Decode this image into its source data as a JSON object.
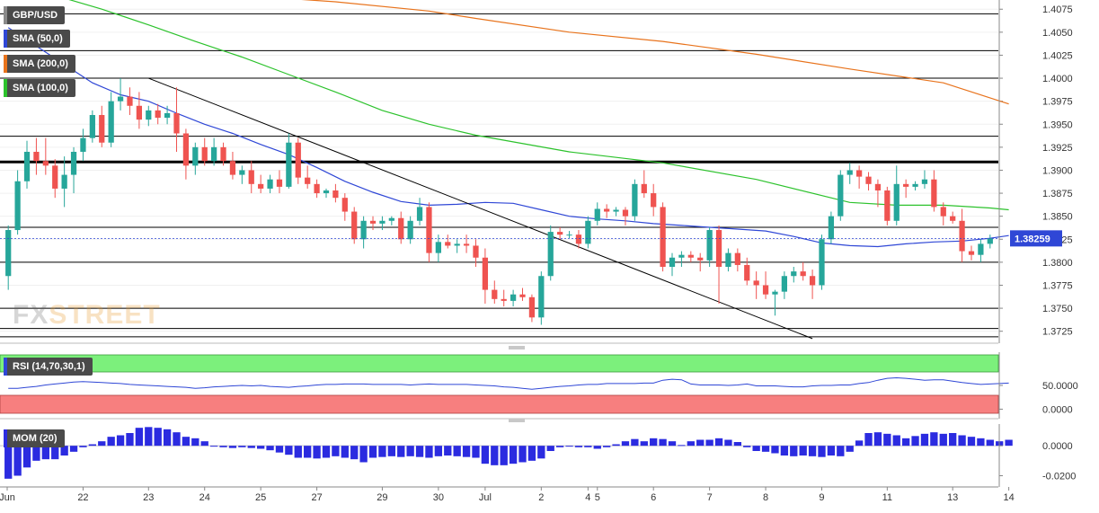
{
  "chart_data": [
    {
      "type": "candlestick",
      "symbol": "GBP/USD",
      "last_price": "1.38259",
      "ylim": [
        1.3712,
        1.4085
      ],
      "y_ticks": [
        "1.4075",
        "1.4050",
        "1.4025",
        "1.4000",
        "1.3975",
        "1.3950",
        "1.3925",
        "1.3900",
        "1.3875",
        "1.3850",
        "1.3825",
        "1.3800",
        "1.3775",
        "1.3750",
        "1.3725"
      ],
      "x_labels": [
        "Jun",
        "22",
        "23",
        "24",
        "25",
        "27",
        "29",
        "30",
        "Jul",
        "2",
        "4",
        "5",
        "6",
        "7",
        "8",
        "9",
        "11",
        "13",
        "14"
      ],
      "horizontal_levels": [
        1.407,
        1.403,
        1.4,
        1.3937,
        1.3909,
        1.3838,
        1.38,
        1.375,
        1.3728,
        1.3719
      ],
      "emphasized_level": 1.3909,
      "candles": [
        [
          1.3785,
          1.384,
          1.377,
          1.3835
        ],
        [
          1.3835,
          1.39,
          1.383,
          1.3888
        ],
        [
          1.3888,
          1.3932,
          1.388,
          1.392
        ],
        [
          1.392,
          1.3935,
          1.3895,
          1.391
        ],
        [
          1.391,
          1.3935,
          1.3895,
          1.3905
        ],
        [
          1.3905,
          1.3912,
          1.387,
          1.388
        ],
        [
          1.388,
          1.3915,
          1.386,
          1.3895
        ],
        [
          1.3895,
          1.3925,
          1.3875,
          1.392
        ],
        [
          1.392,
          1.3945,
          1.391,
          1.3935
        ],
        [
          1.3935,
          1.3965,
          1.393,
          1.396
        ],
        [
          1.396,
          1.397,
          1.3925,
          1.393
        ],
        [
          1.393,
          1.3985,
          1.3925,
          1.3975
        ],
        [
          1.3975,
          1.4,
          1.3965,
          1.398
        ],
        [
          1.398,
          1.399,
          1.396,
          1.397
        ],
        [
          1.397,
          1.3985,
          1.3945,
          1.3955
        ],
        [
          1.3955,
          1.397,
          1.3948,
          1.3965
        ],
        [
          1.3965,
          1.3972,
          1.395,
          1.3957
        ],
        [
          1.3957,
          1.397,
          1.395,
          1.3962
        ],
        [
          1.3962,
          1.399,
          1.392,
          1.394
        ],
        [
          1.394,
          1.3945,
          1.389,
          1.3905
        ],
        [
          1.3905,
          1.393,
          1.3895,
          1.3925
        ],
        [
          1.3925,
          1.3935,
          1.3905,
          1.391
        ],
        [
          1.391,
          1.3935,
          1.3905,
          1.3925
        ],
        [
          1.3925,
          1.393,
          1.3905,
          1.391
        ],
        [
          1.391,
          1.392,
          1.389,
          1.3895
        ],
        [
          1.3895,
          1.3905,
          1.3885,
          1.39
        ],
        [
          1.39,
          1.391,
          1.3875,
          1.3885
        ],
        [
          1.3885,
          1.3895,
          1.3875,
          1.388
        ],
        [
          1.388,
          1.3895,
          1.3875,
          1.389
        ],
        [
          1.389,
          1.39,
          1.3875,
          1.3882
        ],
        [
          1.3882,
          1.394,
          1.388,
          1.393
        ],
        [
          1.393,
          1.3935,
          1.3885,
          1.3892
        ],
        [
          1.3892,
          1.3905,
          1.388,
          1.3885
        ],
        [
          1.3885,
          1.389,
          1.387,
          1.3875
        ],
        [
          1.3875,
          1.388,
          1.387,
          1.3878
        ],
        [
          1.3878,
          1.3885,
          1.3865,
          1.387
        ],
        [
          1.387,
          1.3875,
          1.3845,
          1.3855
        ],
        [
          1.3855,
          1.386,
          1.382,
          1.3825
        ],
        [
          1.3825,
          1.385,
          1.3815,
          1.3845
        ],
        [
          1.3845,
          1.385,
          1.3835,
          1.3842
        ],
        [
          1.3842,
          1.385,
          1.3835,
          1.3845
        ],
        [
          1.3845,
          1.385,
          1.384,
          1.3848
        ],
        [
          1.3848,
          1.3855,
          1.382,
          1.3825
        ],
        [
          1.3825,
          1.385,
          1.382,
          1.3845
        ],
        [
          1.3845,
          1.387,
          1.384,
          1.386
        ],
        [
          1.386,
          1.3865,
          1.38,
          1.381
        ],
        [
          1.381,
          1.383,
          1.38,
          1.3822
        ],
        [
          1.3822,
          1.383,
          1.3815,
          1.3818
        ],
        [
          1.3818,
          1.3825,
          1.381,
          1.382
        ],
        [
          1.382,
          1.383,
          1.381,
          1.3818
        ],
        [
          1.3818,
          1.3825,
          1.3795,
          1.3805
        ],
        [
          1.3805,
          1.3815,
          1.3755,
          1.377
        ],
        [
          1.377,
          1.378,
          1.3755,
          1.376
        ],
        [
          1.376,
          1.377,
          1.3752,
          1.3758
        ],
        [
          1.3758,
          1.377,
          1.3752,
          1.3765
        ],
        [
          1.3765,
          1.3772,
          1.3758,
          1.3762
        ],
        [
          1.3762,
          1.3765,
          1.3735,
          1.374
        ],
        [
          1.374,
          1.379,
          1.3732,
          1.3785
        ],
        [
          1.3785,
          1.384,
          1.378,
          1.3833
        ],
        [
          1.3833,
          1.3838,
          1.3825,
          1.383
        ],
        [
          1.383,
          1.3834,
          1.3826,
          1.383
        ],
        [
          1.383,
          1.3835,
          1.3815,
          1.382
        ],
        [
          1.382,
          1.385,
          1.3815,
          1.3845
        ],
        [
          1.3845,
          1.3865,
          1.384,
          1.3858
        ],
        [
          1.3858,
          1.3863,
          1.3848,
          1.3855
        ],
        [
          1.3855,
          1.386,
          1.385,
          1.3857
        ],
        [
          1.3857,
          1.386,
          1.384,
          1.385
        ],
        [
          1.385,
          1.389,
          1.3845,
          1.3885
        ],
        [
          1.3885,
          1.39,
          1.387,
          1.3875
        ],
        [
          1.3875,
          1.3885,
          1.385,
          1.386
        ],
        [
          1.386,
          1.3865,
          1.379,
          1.3795
        ],
        [
          1.3795,
          1.381,
          1.3785,
          1.3805
        ],
        [
          1.3805,
          1.3812,
          1.3795,
          1.3808
        ],
        [
          1.3808,
          1.3812,
          1.38,
          1.3805
        ],
        [
          1.3805,
          1.381,
          1.379,
          1.3802
        ],
        [
          1.3802,
          1.3838,
          1.3795,
          1.3835
        ],
        [
          1.3835,
          1.384,
          1.3755,
          1.3795
        ],
        [
          1.3795,
          1.3815,
          1.379,
          1.381
        ],
        [
          1.381,
          1.3815,
          1.379,
          1.3797
        ],
        [
          1.3797,
          1.3805,
          1.3775,
          1.378
        ],
        [
          1.378,
          1.379,
          1.376,
          1.3775
        ],
        [
          1.3775,
          1.379,
          1.376,
          1.3765
        ],
        [
          1.3765,
          1.377,
          1.3742,
          1.3768
        ],
        [
          1.3768,
          1.379,
          1.376,
          1.3785
        ],
        [
          1.3785,
          1.3795,
          1.3778,
          1.379
        ],
        [
          1.379,
          1.38,
          1.378,
          1.3785
        ],
        [
          1.3785,
          1.3792,
          1.376,
          1.3775
        ],
        [
          1.3775,
          1.383,
          1.377,
          1.3825
        ],
        [
          1.3825,
          1.3855,
          1.382,
          1.385
        ],
        [
          1.385,
          1.39,
          1.3845,
          1.3895
        ],
        [
          1.3895,
          1.3908,
          1.3885,
          1.39
        ],
        [
          1.39,
          1.3905,
          1.388,
          1.3893
        ],
        [
          1.3893,
          1.3898,
          1.3878,
          1.3885
        ],
        [
          1.3885,
          1.389,
          1.386,
          1.3878
        ],
        [
          1.3878,
          1.3882,
          1.384,
          1.3845
        ],
        [
          1.3845,
          1.3905,
          1.384,
          1.3885
        ],
        [
          1.3885,
          1.389,
          1.387,
          1.3882
        ],
        [
          1.3882,
          1.3888,
          1.3878,
          1.3885
        ],
        [
          1.3885,
          1.39,
          1.388,
          1.389
        ],
        [
          1.389,
          1.39,
          1.3855,
          1.386
        ],
        [
          1.386,
          1.3865,
          1.384,
          1.385
        ],
        [
          1.385,
          1.3855,
          1.3842,
          1.3845
        ],
        [
          1.3845,
          1.3858,
          1.38,
          1.3812
        ],
        [
          1.3812,
          1.3818,
          1.3802,
          1.3808
        ],
        [
          1.3808,
          1.3825,
          1.38,
          1.382
        ],
        [
          1.382,
          1.383,
          1.3815,
          1.3826
        ]
      ],
      "moving_averages": [
        {
          "name": "SMA (50,0)",
          "color": "#2f47d6",
          "points": [
            [
              0,
              1.4055
            ],
            [
              3,
              1.4035
            ],
            [
              6,
              1.4015
            ],
            [
              9,
              1.3995
            ],
            [
              12,
              1.3982
            ],
            [
              15,
              1.3975
            ],
            [
              18,
              1.3962
            ],
            [
              21,
              1.395
            ],
            [
              24,
              1.394
            ],
            [
              27,
              1.3928
            ],
            [
              30,
              1.3917
            ],
            [
              33,
              1.3903
            ],
            [
              36,
              1.3888
            ],
            [
              39,
              1.3876
            ],
            [
              42,
              1.3866
            ],
            [
              45,
              1.3862
            ],
            [
              48,
              1.3863
            ],
            [
              51,
              1.3865
            ],
            [
              54,
              1.3864
            ],
            [
              57,
              1.3857
            ],
            [
              60,
              1.385
            ],
            [
              63,
              1.3847
            ],
            [
              66,
              1.3845
            ],
            [
              69,
              1.3842
            ],
            [
              72,
              1.384
            ],
            [
              75,
              1.3838
            ],
            [
              78,
              1.3836
            ],
            [
              81,
              1.3834
            ],
            [
              84,
              1.3828
            ],
            [
              87,
              1.3821
            ],
            [
              90,
              1.3818
            ],
            [
              93,
              1.3817
            ],
            [
              96,
              1.382
            ],
            [
              99,
              1.3822
            ],
            [
              102,
              1.3823
            ],
            [
              105,
              1.3826
            ],
            [
              107,
              1.3829
            ]
          ]
        },
        {
          "name": "SMA (200,0)",
          "color": "#e8731c",
          "points": [
            [
              15,
              1.41
            ],
            [
              25,
              1.409
            ],
            [
              35,
              1.4083
            ],
            [
              45,
              1.4073
            ],
            [
              50,
              1.4065
            ],
            [
              60,
              1.405
            ],
            [
              70,
              1.404
            ],
            [
              80,
              1.4026
            ],
            [
              90,
              1.401
            ],
            [
              100,
              1.3995
            ],
            [
              107,
              1.3972
            ]
          ]
        },
        {
          "name": "SMA (100,0)",
          "color": "#2cc22c",
          "points": [
            [
              0,
              1.41
            ],
            [
              5,
              1.409
            ],
            [
              10,
              1.4075
            ],
            [
              15,
              1.4058
            ],
            [
              20,
              1.404
            ],
            [
              25,
              1.4023
            ],
            [
              30,
              1.4004
            ],
            [
              35,
              1.3985
            ],
            [
              40,
              1.3965
            ],
            [
              45,
              1.395
            ],
            [
              50,
              1.3938
            ],
            [
              60,
              1.392
            ],
            [
              70,
              1.3908
            ],
            [
              80,
              1.389
            ],
            [
              90,
              1.3865
            ],
            [
              95,
              1.3862
            ],
            [
              100,
              1.3862
            ],
            [
              105,
              1.3859
            ],
            [
              107,
              1.3857
            ]
          ]
        }
      ],
      "trend_lines": [
        {
          "color": "#000000",
          "from": [
            15,
            1.4
          ],
          "to": [
            86,
            1.3717
          ]
        }
      ]
    },
    {
      "type": "line",
      "indicator": "RSI (14,70,30,1)",
      "ylim": [
        -20,
        120
      ],
      "y_ticks": [
        "50.0000",
        "0.0000"
      ],
      "overbought": 70,
      "oversold": 30,
      "values": [
        44,
        44,
        46,
        48,
        51,
        53,
        55,
        57,
        58,
        57,
        56,
        55,
        54,
        52,
        51,
        50,
        49,
        48,
        47,
        46,
        44,
        45,
        47,
        48,
        49,
        50,
        49,
        50,
        48,
        47,
        46,
        48,
        49,
        51,
        52,
        52,
        53,
        53,
        53,
        52,
        52,
        52,
        52,
        51,
        52,
        53,
        52,
        52,
        52,
        52,
        51,
        50,
        49,
        47,
        46,
        44,
        42,
        44,
        46,
        48,
        49,
        51,
        52,
        52,
        54,
        54,
        54,
        54,
        55,
        55,
        61,
        63,
        62,
        53,
        51,
        51,
        51,
        50,
        51,
        53,
        49,
        49,
        49,
        48,
        47,
        47,
        49,
        50,
        50,
        51,
        51,
        54,
        56,
        61,
        65,
        66,
        65,
        63,
        61,
        62,
        62,
        59,
        56,
        54,
        52,
        53,
        54,
        55
      ]
    },
    {
      "type": "bar",
      "indicator": "MOM (20)",
      "ylim": [
        -0.0275,
        0.0145
      ],
      "y_ticks": [
        "0.0000",
        "-0.0200"
      ],
      "values": [
        -0.022,
        -0.02,
        -0.0145,
        -0.01,
        -0.009,
        -0.009,
        -0.0065,
        -0.004,
        -0.001,
        0.001,
        0.003,
        0.006,
        0.007,
        0.0085,
        0.012,
        0.0125,
        0.012,
        0.011,
        0.009,
        0.006,
        0.005,
        0.003,
        0.0,
        -0.001,
        -0.0015,
        -0.001,
        -0.0015,
        -0.002,
        -0.003,
        -0.0045,
        -0.006,
        -0.008,
        -0.008,
        -0.0085,
        -0.008,
        -0.007,
        -0.008,
        -0.009,
        -0.011,
        -0.008,
        -0.0075,
        -0.007,
        -0.0075,
        -0.007,
        -0.0075,
        -0.008,
        -0.007,
        -0.0065,
        -0.007,
        -0.0075,
        -0.008,
        -0.012,
        -0.013,
        -0.013,
        -0.012,
        -0.011,
        -0.01,
        -0.0085,
        -0.0035,
        -0.001,
        -0.0005,
        -0.001,
        -0.001,
        -0.002,
        -0.001,
        0.001,
        0.003,
        0.0045,
        0.003,
        0.005,
        0.0045,
        0.003,
        0.0005,
        0.003,
        0.004,
        0.004,
        0.005,
        0.004,
        0.0025,
        -0.001,
        -0.0035,
        -0.004,
        -0.005,
        -0.0065,
        -0.007,
        -0.0065,
        -0.007,
        -0.0075,
        -0.0065,
        -0.007,
        -0.004,
        0.0035,
        0.0085,
        0.009,
        0.008,
        0.007,
        0.005,
        0.0065,
        0.008,
        0.009,
        0.008,
        0.0085,
        0.007,
        0.006,
        0.005,
        0.004,
        0.003,
        0.004
      ]
    }
  ],
  "legend": {
    "symbol": "GBP/USD",
    "sma50": "SMA (50,0)",
    "sma200": "SMA (200,0)",
    "sma100": "SMA (100,0)"
  },
  "watermark": {
    "fx": "FX",
    "street": "STREET"
  },
  "colors": {
    "bull": "#26a69a",
    "bear": "#ef5350",
    "sma50": "#2f47d6",
    "sma200": "#e8731c",
    "sma100": "#2cc22c",
    "rsi_line": "#2f47d6",
    "rsi_overbought_zone": "#7cf07c",
    "rsi_oversold_zone": "#f77f7f",
    "mom_bar": "#2b2be0",
    "price_label_bg": "#2f47d6"
  }
}
